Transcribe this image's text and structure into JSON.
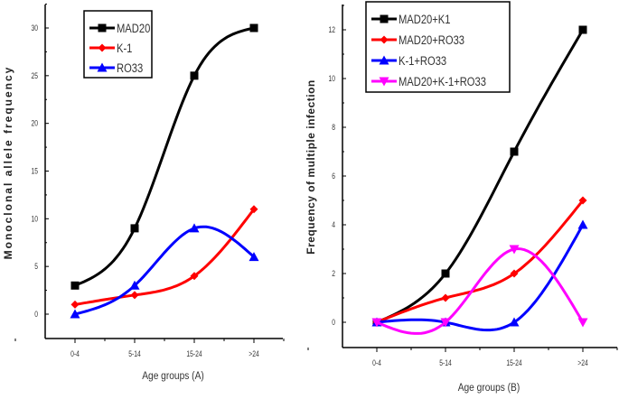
{
  "chart_data": [
    {
      "type": "line",
      "categories": [
        "0-4",
        "5-14",
        "15-24",
        ">24"
      ],
      "xlabel": "Age groups (A)",
      "ylabel": "Monoclonal allele frequency",
      "ylim": [
        -3,
        32
      ],
      "yticks": [
        0,
        5,
        10,
        15,
        20,
        25,
        30
      ],
      "grid": false,
      "legend": "top-left",
      "series": [
        {
          "name": "MAD20",
          "values": [
            3,
            9,
            25,
            30
          ],
          "color": "#000000",
          "marker": "square"
        },
        {
          "name": "K-1",
          "values": [
            1,
            2,
            4,
            11
          ],
          "color": "#ff0000",
          "marker": "diamond"
        },
        {
          "name": "RO33",
          "values": [
            0,
            3,
            9,
            6
          ],
          "color": "#0000ff",
          "marker": "triangle-up"
        }
      ]
    },
    {
      "type": "line",
      "categories": [
        "0-4",
        "5-14",
        "15-24",
        ">24"
      ],
      "xlabel": "Age groups (B)",
      "ylabel": "Frequency of multiple infection",
      "ylim": [
        -1,
        13
      ],
      "yticks": [
        0,
        2,
        4,
        6,
        8,
        10,
        12
      ],
      "grid": false,
      "legend": "top-left",
      "series": [
        {
          "name": "MAD20+K1",
          "values": [
            0,
            2,
            7,
            12
          ],
          "color": "#000000",
          "marker": "square"
        },
        {
          "name": "MAD20+RO33",
          "values": [
            0,
            1,
            2,
            5
          ],
          "color": "#ff0000",
          "marker": "diamond"
        },
        {
          "name": "K-1+RO33",
          "values": [
            0,
            0,
            0,
            4
          ],
          "color": "#0000ff",
          "marker": "triangle-up"
        },
        {
          "name": "MAD20+K-1+RO33",
          "values": [
            0,
            0,
            3,
            0
          ],
          "color": "#ff00ff",
          "marker": "triangle-down"
        }
      ]
    }
  ]
}
